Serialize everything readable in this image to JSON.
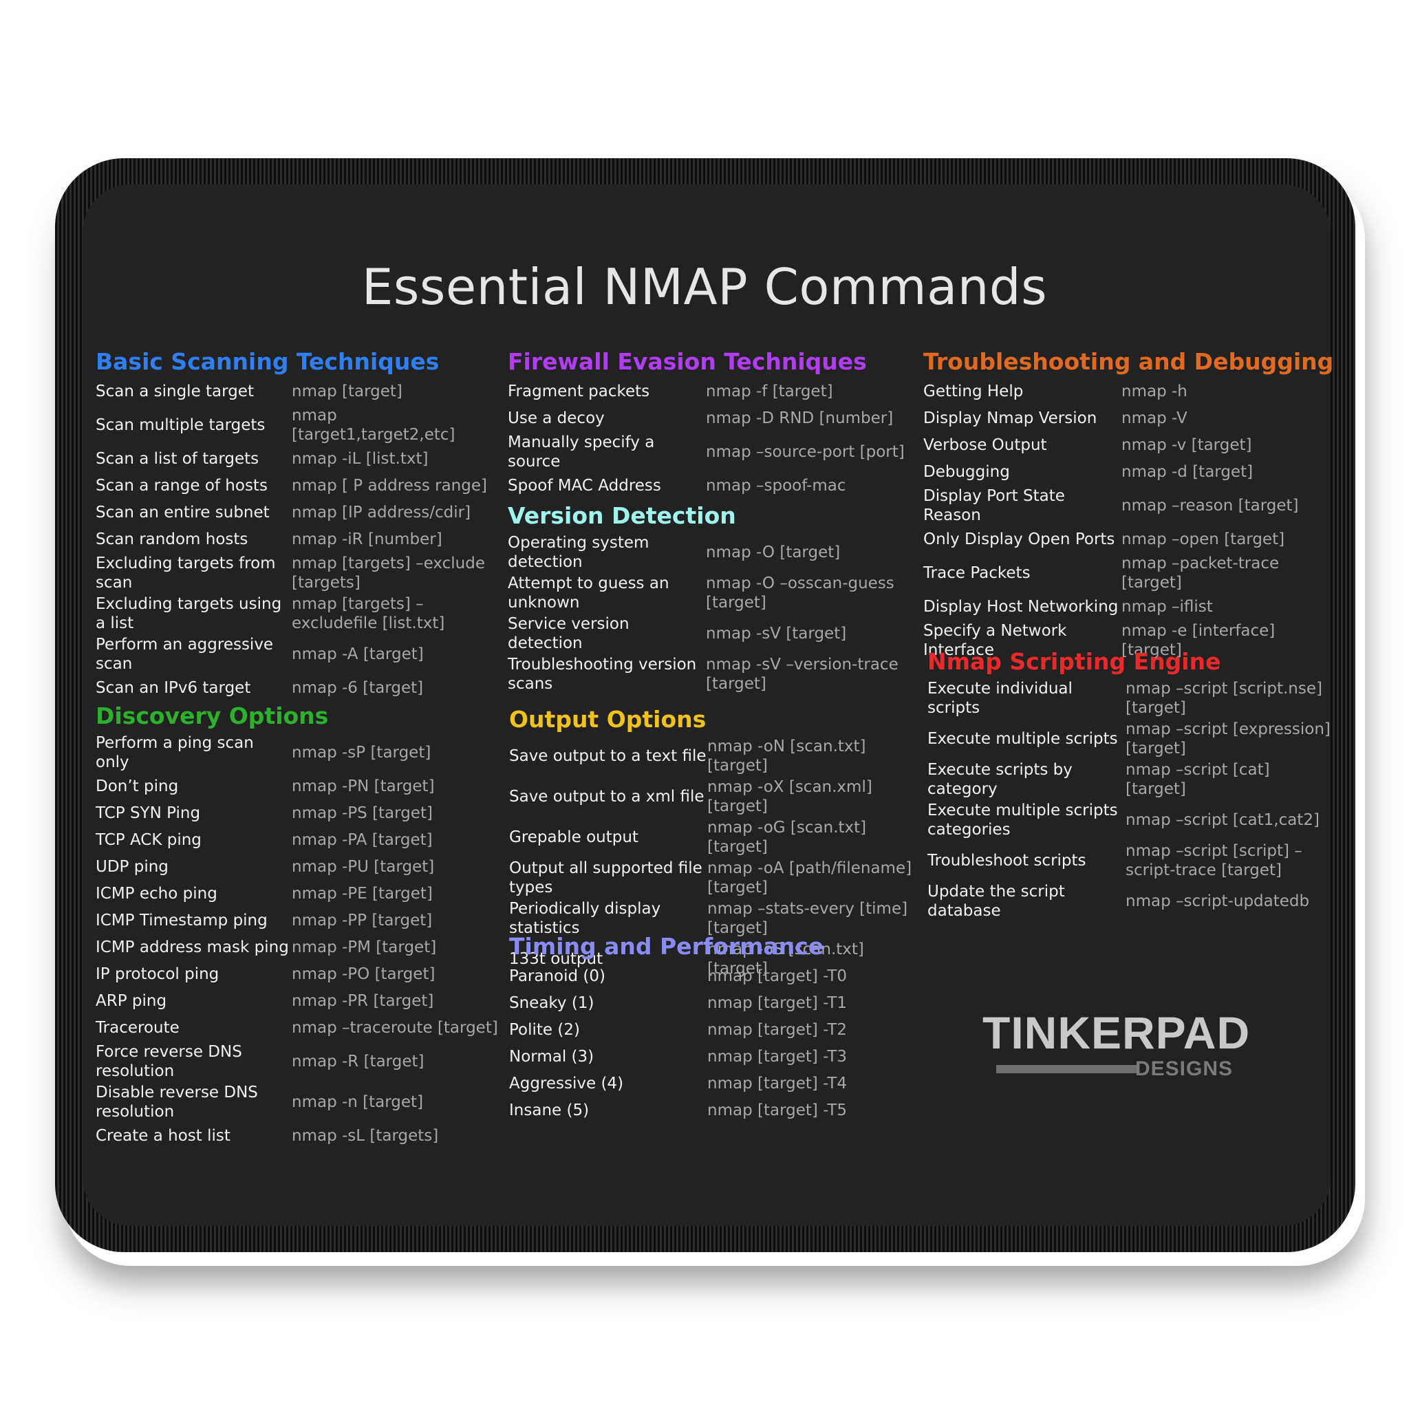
{
  "title": "Essential NMAP Commands",
  "colors": {
    "basic": "#2f7ff0",
    "firewall": "#b23df0",
    "troubleshooting": "#e06a22",
    "version": "#9ff5ee",
    "discovery": "#2db12d",
    "output": "#f2c21c",
    "nse": "#ea2a2a",
    "timing": "#8a8cf5"
  },
  "sections": {
    "basic": {
      "heading": "Basic Scanning Techniques",
      "rows": [
        {
          "label": "Scan a single target",
          "cmd": "nmap [target]"
        },
        {
          "label": "Scan multiple targets",
          "cmd": "nmap [target1,target2,etc]"
        },
        {
          "label": "Scan a list of targets",
          "cmd": "nmap -iL [list.txt]"
        },
        {
          "label": "Scan a range of hosts",
          "cmd": "nmap [ P address range]"
        },
        {
          "label": "Scan an entire subnet",
          "cmd": "nmap [IP address/cdir]"
        },
        {
          "label": "Scan random hosts",
          "cmd": "nmap -iR [number]"
        },
        {
          "label": "Excluding targets from scan",
          "cmd": "nmap [targets] –exclude [targets]"
        },
        {
          "label": "Excluding targets using a list",
          "cmd": "nmap [targets] –excludefile [list.txt]"
        },
        {
          "label": "Perform an aggressive scan",
          "cmd": "nmap -A [target]"
        },
        {
          "label": "Scan an IPv6 target",
          "cmd": "nmap -6 [target]"
        }
      ]
    },
    "discovery": {
      "heading": "Discovery Options",
      "rows": [
        {
          "label": "Perform a ping scan only",
          "cmd": "nmap -sP [target]"
        },
        {
          "label": "Don’t ping",
          "cmd": "nmap -PN [target]"
        },
        {
          "label": "TCP SYN Ping",
          "cmd": "nmap -PS [target]"
        },
        {
          "label": "TCP ACK ping",
          "cmd": "nmap -PA [target]"
        },
        {
          "label": "UDP ping",
          "cmd": "nmap -PU [target]"
        },
        {
          "label": "ICMP echo ping",
          "cmd": "nmap -PE [target]"
        },
        {
          "label": "ICMP Timestamp ping",
          "cmd": "nmap -PP [target]"
        },
        {
          "label": "ICMP address mask ping",
          "cmd": "nmap -PM [target]"
        },
        {
          "label": "IP protocol ping",
          "cmd": "nmap -PO [target]"
        },
        {
          "label": "ARP ping",
          "cmd": "nmap -PR [target]"
        },
        {
          "label": "Traceroute",
          "cmd": "nmap –traceroute [target]"
        },
        {
          "label": "Force reverse DNS resolution",
          "cmd": "nmap -R [target]"
        },
        {
          "label": "Disable reverse DNS resolution",
          "cmd": "nmap -n [target]"
        },
        {
          "label": "Create a host list",
          "cmd": "nmap -sL [targets]"
        }
      ]
    },
    "firewall": {
      "heading": "Firewall Evasion Techniques",
      "rows": [
        {
          "label": "Fragment packets",
          "cmd": "nmap -f [target]"
        },
        {
          "label": "Use a decoy",
          "cmd": "nmap -D RND [number]"
        },
        {
          "label": "Manually specify a source",
          "cmd": "nmap –source-port [port]"
        },
        {
          "label": "Spoof MAC Address",
          "cmd": "nmap –spoof-mac"
        }
      ]
    },
    "version": {
      "heading": "Version Detection",
      "rows": [
        {
          "label": "Operating system detection",
          "cmd": "nmap -O [target]"
        },
        {
          "label": "Attempt to guess an unknown",
          "cmd": "nmap -O –osscan-guess [target]"
        },
        {
          "label": "Service version detection",
          "cmd": "nmap -sV [target]"
        },
        {
          "label": "Troubleshooting version scans",
          "cmd": "nmap -sV –version-trace [target]"
        }
      ]
    },
    "output": {
      "heading": "Output Options",
      "rows": [
        {
          "label": "Save output to a text file",
          "cmd": "nmap -oN [scan.txt] [target]"
        },
        {
          "label": "Save output to a xml file",
          "cmd": "nmap -oX [scan.xml] [target]"
        },
        {
          "label": "Grepable output",
          "cmd": "nmap -oG [scan.txt] [target]"
        },
        {
          "label": "Output all supported file types",
          "cmd": "nmap -oA [path/filename] [target]"
        },
        {
          "label": "Periodically display statistics",
          "cmd": "nmap –stats-every [time] [target]"
        },
        {
          "label": "133t output",
          "cmd": "nmap -oS [scan.txt] [target]"
        }
      ]
    },
    "timing": {
      "heading": "Timing and Performance",
      "rows": [
        {
          "label": "Paranoid (0)",
          "cmd": "nmap [target] -T0"
        },
        {
          "label": "Sneaky (1)",
          "cmd": "nmap [target] -T1"
        },
        {
          "label": "Polite (2)",
          "cmd": "nmap [target] -T2"
        },
        {
          "label": "Normal (3)",
          "cmd": "nmap [target] -T3"
        },
        {
          "label": "Aggressive (4)",
          "cmd": "nmap [target] -T4"
        },
        {
          "label": "Insane (5)",
          "cmd": "nmap [target] -T5"
        }
      ]
    },
    "troubleshooting": {
      "heading": "Troubleshooting and Debugging",
      "rows": [
        {
          "label": "Getting Help",
          "cmd": "nmap -h"
        },
        {
          "label": "Display Nmap Version",
          "cmd": "nmap -V"
        },
        {
          "label": "Verbose Output",
          "cmd": "nmap -v [target]"
        },
        {
          "label": "Debugging",
          "cmd": "nmap -d [target]"
        },
        {
          "label": "Display Port State Reason",
          "cmd": "nmap –reason [target]"
        },
        {
          "label": "Only Display Open Ports",
          "cmd": "nmap –open [target]"
        },
        {
          "label": "Trace Packets",
          "cmd": "nmap –packet-trace [target]"
        },
        {
          "label": "Display Host Networking",
          "cmd": "nmap –iflist"
        },
        {
          "label": "Specify a Network Interface",
          "cmd": "nmap -e [interface] [target]"
        }
      ]
    },
    "nse": {
      "heading": "Nmap Scripting Engine",
      "rows": [
        {
          "label": "Execute individual scripts",
          "cmd": "nmap –script [script.nse] [target]"
        },
        {
          "label": "Execute multiple scripts",
          "cmd": "nmap –script [expression] [target]"
        },
        {
          "label": "Execute scripts by category",
          "cmd": "nmap –script [cat] [target]"
        },
        {
          "label": "Execute multiple scripts categories",
          "cmd": "nmap –script [cat1,cat2]"
        },
        {
          "label": "Troubleshoot scripts",
          "cmd": "nmap –script [script] –script-trace [target]"
        },
        {
          "label": "Update the script database",
          "cmd": "nmap –script-updatedb"
        }
      ]
    }
  },
  "logo": {
    "name": "TINKERPAD",
    "sub": "DESIGNS"
  }
}
